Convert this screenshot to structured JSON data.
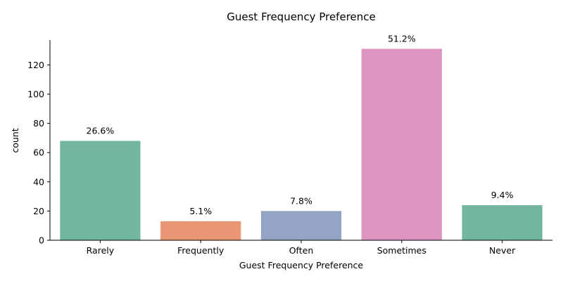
{
  "chart_data": {
    "type": "bar",
    "title": "Guest Frequency Preference",
    "xlabel": "Guest Frequency Preference",
    "ylabel": "count",
    "categories": [
      "Rarely",
      "Frequently",
      "Often",
      "Sometimes",
      "Never"
    ],
    "values": [
      68,
      13,
      20,
      131,
      24
    ],
    "data_labels": [
      "26.6%",
      "5.1%",
      "7.8%",
      "51.2%",
      "9.4%"
    ],
    "colors": [
      "#72b6a0",
      "#e99675",
      "#95a3c4",
      "#db95c0",
      "#72b6a0"
    ],
    "ylim": [
      0,
      137
    ],
    "yticks": [
      0,
      20,
      40,
      60,
      80,
      100,
      120
    ],
    "grid": false,
    "legend": "none"
  }
}
